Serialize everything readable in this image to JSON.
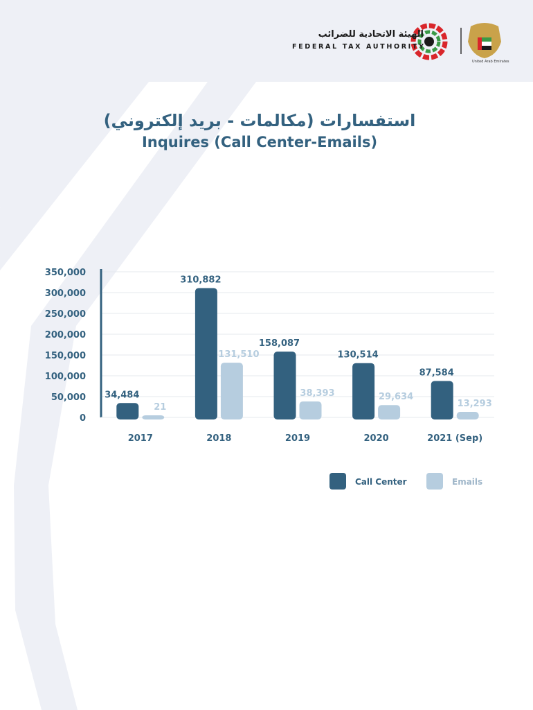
{
  "header": {
    "logo_arabic": "الهيئة الاتحادية للضرائب",
    "logo_english": "FEDERAL TAX AUTHORITY",
    "uae_caption": "United Arab Emirates"
  },
  "title_arabic": "استفسارات (مكالمات - بريد إلكتروني)",
  "title_english": "Inquires (Call Center-Emails)",
  "colors": {
    "call_center": "#33617f",
    "emails": "#b6cddf",
    "background_shape": "#eef0f6",
    "axis": "#33617f"
  },
  "chart_data": {
    "type": "bar",
    "categories": [
      "2017",
      "2018",
      "2019",
      "2020",
      "2021 (Sep)"
    ],
    "series": [
      {
        "name": "Call Center",
        "values": [
          34484,
          310882,
          158087,
          130514,
          87584
        ],
        "labels": [
          "34,484",
          "310,882",
          "158,087",
          "130,514",
          "87,584"
        ]
      },
      {
        "name": "Emails",
        "values": [
          21,
          131510,
          38393,
          29634,
          13293
        ],
        "labels": [
          "21",
          "131,510",
          "38,393",
          "29,634",
          "13,293"
        ]
      }
    ],
    "y_ticks": [
      "0",
      "50,000",
      "100,000",
      "150,000",
      "200,000",
      "250,000",
      "300,000",
      "350,000"
    ],
    "ylim": [
      0,
      350000
    ],
    "grid": true,
    "legend": "bottom-right"
  }
}
